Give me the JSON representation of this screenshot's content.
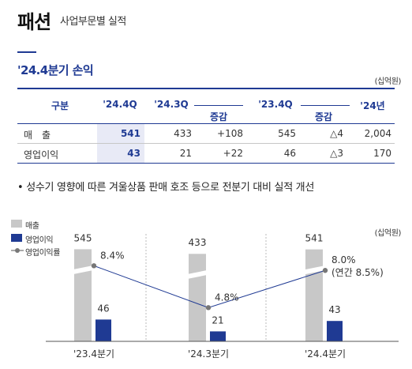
{
  "header": {
    "title": "패션",
    "subtitle": "사업부문별 실적"
  },
  "section": {
    "title": "'24.4분기 손익",
    "unit": "(십억원)"
  },
  "table": {
    "headers": {
      "item": "구분",
      "q244": "'24.4Q",
      "q243": "'24.3Q",
      "diff1": "증감",
      "q234": "'23.4Q",
      "diff2": "증감",
      "y24": "'24년"
    },
    "rows": [
      {
        "label": "매　출",
        "q244": "541",
        "q243": "433",
        "diff1": "+108",
        "q234": "545",
        "diff2": "△4",
        "y24": "2,004"
      },
      {
        "label": "영업이익",
        "q244": "43",
        "q243": "21",
        "diff1": "+22",
        "q234": "46",
        "diff2": "△3",
        "y24": "170"
      }
    ]
  },
  "bullet": "• 성수기 영향에 따른 겨울상품 판매 호조 등으로 전분기 대비 실적 개선",
  "colors": {
    "navy": "#1f3a93",
    "gray_bar": "#c8c8c8",
    "highlight": "#e8eaf6"
  },
  "chart_data": {
    "type": "bar",
    "categories": [
      "'23.4분기",
      "'24.3분기",
      "'24.4분기"
    ],
    "unit": "(십억원)",
    "series": [
      {
        "name": "매출",
        "values": [
          545,
          433,
          541
        ],
        "labels": [
          "545",
          "433",
          "541"
        ]
      },
      {
        "name": "영업이익",
        "values": [
          46,
          21,
          43
        ],
        "labels": [
          "46",
          "21",
          "43"
        ]
      },
      {
        "name": "영업이익률",
        "values": [
          8.4,
          4.8,
          8.0
        ],
        "labels": [
          "8.4%",
          "4.8%",
          "8.0%"
        ]
      }
    ],
    "annotation": "(연간 8.5%)",
    "axis_break": true
  }
}
